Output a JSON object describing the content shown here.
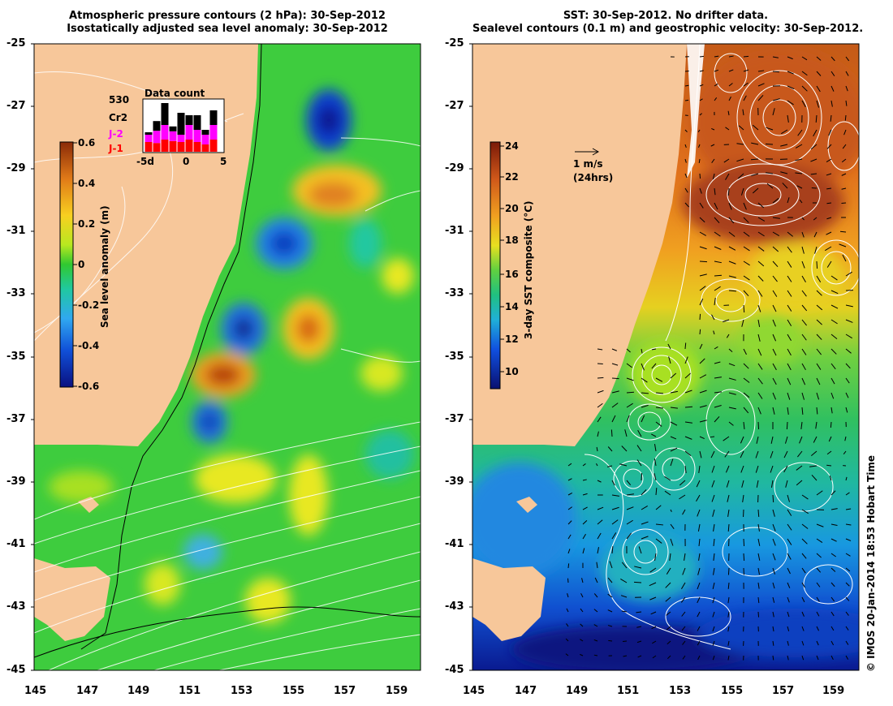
{
  "left_panel": {
    "title_line1": "Atmospheric pressure contours (2 hPa): 30-Sep-2012",
    "title_line2": "Isostatically adjusted sea level anomaly: 30-Sep-2012",
    "colorbar": {
      "label": "Sea level anomaly (m)",
      "ticks": [
        "0.6",
        "0.4",
        "0.2",
        "0",
        "-0.2",
        "-0.4",
        "-0.6"
      ],
      "colors": [
        "#a33a0a",
        "#e07a18",
        "#f6c020",
        "#f2f020",
        "#a8e020",
        "#30c830",
        "#20c8a0",
        "#30a8f0",
        "#1060e0",
        "#0a1a90"
      ]
    },
    "satellites": {
      "count_label": "530",
      "items": [
        {
          "name": "Cr2",
          "color": "#000000"
        },
        {
          "name": "J-2",
          "color": "#ff00ff"
        },
        {
          "name": "J-1",
          "color": "#ff0000"
        }
      ]
    },
    "data_count": {
      "title": "Data count",
      "x_ticks": [
        "-5d",
        "0",
        "5"
      ],
      "bars": [
        {
          "j1": 0.2,
          "j2": 0.15,
          "cr2": 0.05
        },
        {
          "j1": 0.18,
          "j2": 0.25,
          "cr2": 0.2
        },
        {
          "j1": 0.25,
          "j2": 0.3,
          "cr2": 0.45
        },
        {
          "j1": 0.22,
          "j2": 0.2,
          "cr2": 0.1
        },
        {
          "j1": 0.2,
          "j2": 0.15,
          "cr2": 0.45
        },
        {
          "j1": 0.25,
          "j2": 0.3,
          "cr2": 0.2
        },
        {
          "j1": 0.2,
          "j2": 0.25,
          "cr2": 0.3
        },
        {
          "j1": 0.15,
          "j2": 0.2,
          "cr2": 0.1
        },
        {
          "j1": 0.25,
          "j2": 0.3,
          "cr2": 0.3
        }
      ]
    }
  },
  "right_panel": {
    "title_line1": "SST: 30-Sep-2012. No drifter data.",
    "title_line2": "Sealevel contours (0.1 m) and geostrophic velocity: 30-Sep-2012.",
    "colorbar": {
      "label": "3-day SST composite (°C)",
      "ticks": [
        "24",
        "22",
        "20",
        "18",
        "16",
        "14",
        "12",
        "10"
      ],
      "colors": [
        "#8a2a0a",
        "#c0501a",
        "#e88a20",
        "#f6c020",
        "#d8e820",
        "#60d040",
        "#20c070",
        "#20b8c0",
        "#2080e8",
        "#1030c0",
        "#0a1a80"
      ]
    },
    "velocity_scale": {
      "speed": "1 m/s",
      "duration": "(24hrs)"
    }
  },
  "axes": {
    "lat_ticks": [
      "-25",
      "-27",
      "-29",
      "-31",
      "-33",
      "-35",
      "-37",
      "-39",
      "-41",
      "-43",
      "-45"
    ],
    "lon_ticks": [
      "145",
      "147",
      "149",
      "151",
      "153",
      "155",
      "157",
      "159"
    ]
  },
  "credit": "© IMOS 20-Jan-2014 18:53 Hobart Time",
  "colors": {
    "land": "#f7c79a",
    "ocean_green": "#3ecc3e",
    "contour": "#ffffff",
    "coast_line": "#000000"
  }
}
